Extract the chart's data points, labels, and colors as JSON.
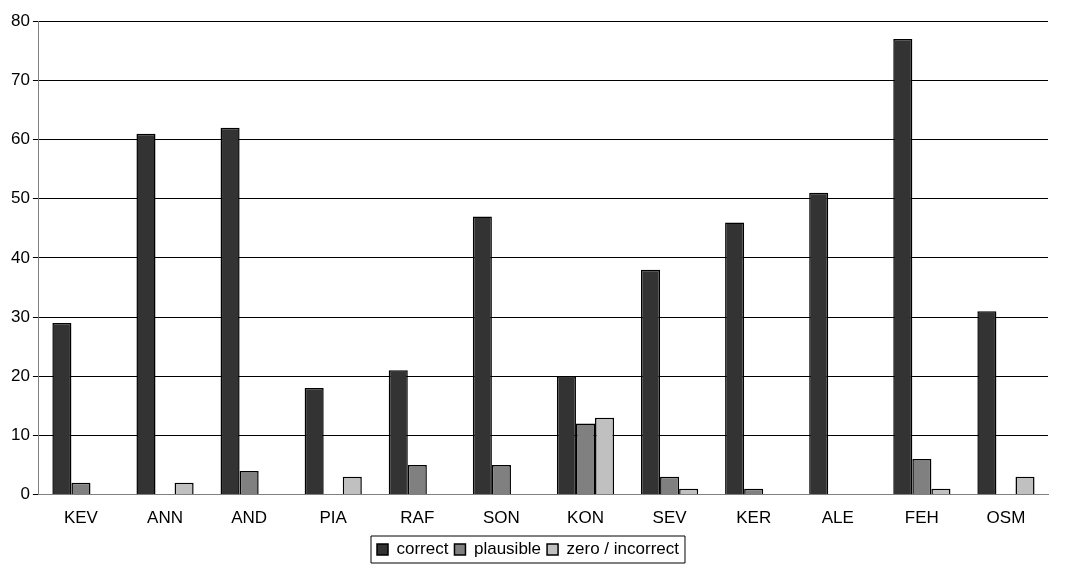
{
  "chart_data": {
    "type": "bar",
    "categories": [
      "KEV",
      "ANN",
      "AND",
      "PIA",
      "RAF",
      "SON",
      "KON",
      "SEV",
      "KER",
      "ALE",
      "FEH",
      "OSM"
    ],
    "series": [
      {
        "name": "correct",
        "color": "#333333",
        "values": [
          29,
          61,
          62,
          18,
          21,
          47,
          20,
          38,
          46,
          51,
          77,
          31
        ]
      },
      {
        "name": "plausible",
        "color": "#808080",
        "values": [
          2,
          0,
          4,
          0,
          5,
          5,
          12,
          3,
          1,
          0,
          6,
          0
        ]
      },
      {
        "name": "zero / incorrect",
        "color": "#c0c0c0",
        "values": [
          0,
          2,
          0,
          3,
          0,
          0,
          13,
          1,
          0,
          0,
          1,
          3
        ]
      }
    ],
    "ylim": [
      0,
      80
    ],
    "yticks": [
      0,
      10,
      20,
      30,
      40,
      50,
      60,
      70,
      80
    ],
    "grid": "y",
    "legend": "bottom"
  }
}
